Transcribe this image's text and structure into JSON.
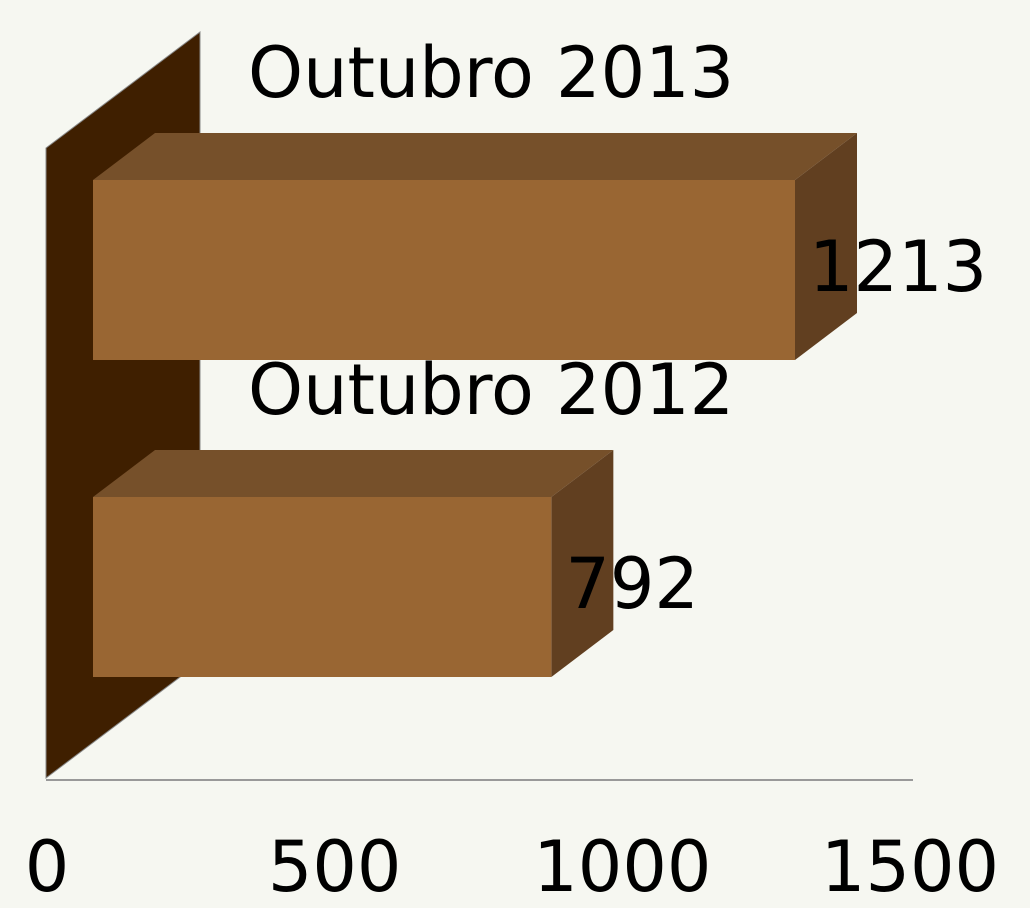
{
  "chart_data": {
    "type": "bar",
    "orientation": "horizontal",
    "categories": [
      "Outubro 2013",
      "Outubro 2012"
    ],
    "values": [
      1213,
      792
    ],
    "color": "#996633",
    "xlim": [
      0,
      1500
    ],
    "xticks": [
      0,
      500,
      1000,
      1500
    ]
  }
}
